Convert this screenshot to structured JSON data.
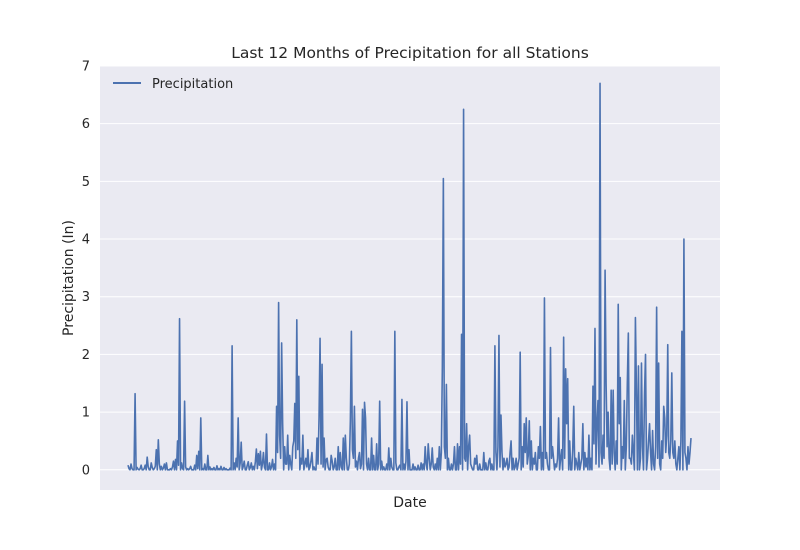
{
  "chart_data": {
    "type": "line",
    "title": "Last 12 Months of Precipitation for all Stations",
    "xlabel": "Date",
    "ylabel": "Precipitation (In)",
    "ylim": [
      -0.35,
      7.0
    ],
    "yticks": [
      0,
      1,
      2,
      3,
      4,
      5,
      6,
      7
    ],
    "ytick_labels": [
      "0",
      "1",
      "2",
      "3",
      "4",
      "5",
      "6",
      "7"
    ],
    "grid": true,
    "legend_position": "top-left",
    "colors": {
      "background": "#eaeaf2",
      "grid": "#ffffff",
      "line": "#4c72b0"
    },
    "series": [
      {
        "name": "Precipitation",
        "values": [
          0.08,
          0.02,
          0.0,
          0.1,
          0.02,
          0.0,
          0.0,
          1.32,
          0.0,
          0.04,
          0.01,
          0.0,
          0.02,
          0.08,
          0.0,
          0.0,
          0.02,
          0.08,
          0.0,
          0.22,
          0.05,
          0.0,
          0.0,
          0.12,
          0.04,
          0.0,
          0.02,
          0.06,
          0.35,
          0.0,
          0.52,
          0.1,
          0.0,
          0.06,
          0.0,
          0.03,
          0.1,
          0.0,
          0.12,
          0.0,
          0.0,
          0.0,
          0.02,
          0.0,
          0.05,
          0.15,
          0.0,
          0.18,
          0.0,
          0.5,
          0.08,
          2.62,
          0.0,
          0.12,
          0.02,
          0.0,
          1.19,
          0.05,
          0.0,
          0.02,
          0.0,
          0.02,
          0.06,
          0.0,
          0.0,
          0.0,
          0.08,
          0.0,
          0.25,
          0.02,
          0.32,
          0.0,
          0.9,
          0.0,
          0.02,
          0.0,
          0.1,
          0.0,
          0.0,
          0.25,
          0.0,
          0.05,
          0.0,
          0.02,
          0.0,
          0.04,
          0.0,
          0.0,
          0.07,
          0.0,
          0.02,
          0.0,
          0.06,
          0.0,
          0.0,
          0.04,
          0.0,
          0.02,
          0.0,
          0.0,
          0.0,
          0.03,
          0.0,
          2.15,
          0.0,
          0.12,
          0.0,
          0.2,
          0.05,
          0.9,
          0.0,
          0.12,
          0.48,
          0.0,
          0.06,
          0.15,
          0.0,
          0.0,
          0.08,
          0.14,
          0.0,
          0.04,
          0.12,
          0.0,
          0.06,
          0.0,
          0.14,
          0.36,
          0.02,
          0.28,
          0.08,
          0.32,
          0.0,
          0.1,
          0.3,
          0.05,
          0.0,
          0.62,
          0.0,
          0.0,
          0.12,
          0.0,
          0.05,
          0.18,
          0.0,
          0.1,
          0.0,
          1.1,
          0.3,
          2.9,
          0.6,
          0.2,
          2.2,
          0.8,
          0.0,
          0.4,
          0.1,
          0.1,
          0.6,
          0.0,
          0.25,
          0.1,
          0.0,
          0.4,
          0.5,
          1.15,
          0.2,
          2.6,
          0.35,
          1.62,
          0.0,
          0.2,
          0.1,
          0.6,
          0.0,
          0.1,
          0.2,
          0.05,
          0.35,
          0.0,
          0.05,
          0.15,
          0.3,
          0.0,
          0.05,
          0.0,
          0.0,
          0.55,
          0.1,
          0.9,
          2.28,
          0.1,
          1.83,
          0.05,
          0.55,
          0.0,
          0.18,
          0.2,
          0.05,
          0.0,
          0.0,
          0.25,
          0.15,
          0.0,
          0.05,
          0.2,
          0.0,
          0.0,
          0.4,
          0.0,
          0.3,
          0.05,
          0.0,
          0.55,
          0.0,
          0.6,
          0.2,
          0.0,
          0.0,
          0.1,
          0.85,
          2.4,
          0.35,
          0.2,
          1.1,
          0.05,
          0.15,
          0.0,
          0.2,
          0.3,
          0.02,
          0.1,
          1.05,
          0.0,
          1.17,
          0.9,
          0.1,
          0.0,
          0.2,
          0.0,
          0.0,
          0.55,
          0.0,
          0.25,
          0.0,
          0.0,
          0.45,
          0.0,
          0.1,
          1.19,
          0.0,
          0.15,
          0.0,
          0.05,
          0.0,
          0.0,
          0.1,
          0.0,
          0.38,
          0.0,
          0.2,
          0.05,
          0.0,
          0.0,
          2.4,
          0.12,
          0.0,
          0.0,
          0.05,
          0.08,
          0.0,
          1.22,
          0.0,
          0.1,
          0.0,
          0.15,
          1.18,
          0.0,
          0.35,
          0.0,
          0.0,
          0.0,
          0.1,
          0.0,
          0.05,
          0.0,
          0.0,
          0.08,
          0.0,
          0.0,
          0.12,
          0.0,
          0.1,
          0.0,
          0.4,
          0.1,
          0.0,
          0.45,
          0.2,
          0.0,
          0.1,
          0.38,
          0.05,
          0.0,
          0.1,
          0.0,
          0.2,
          0.0,
          0.4,
          0.0,
          0.3,
          1.78,
          5.05,
          0.4,
          0.2,
          1.48,
          0.0,
          0.2,
          0.0,
          0.0,
          0.1,
          0.0,
          0.1,
          0.4,
          0.0,
          0.0,
          0.45,
          0.0,
          0.4,
          0.1,
          2.35,
          0.0,
          6.25,
          0.2,
          0.15,
          0.8,
          0.0,
          0.4,
          0.6,
          0.1,
          0.05,
          0.0,
          0.0,
          0.2,
          0.1,
          0.25,
          0.0,
          0.0,
          0.1,
          0.0,
          0.0,
          0.0,
          0.3,
          0.0,
          0.12,
          0.0,
          0.0,
          0.15,
          0.2,
          0.0,
          0.1,
          0.0,
          0.0,
          2.15,
          0.3,
          0.0,
          0.4,
          2.33,
          0.05,
          0.95,
          0.3,
          0.0,
          0.2,
          0.05,
          0.1,
          0.2,
          0.0,
          0.05,
          0.3,
          0.5,
          0.0,
          0.2,
          0.0,
          0.05,
          0.2,
          0.0,
          0.1,
          0.2,
          2.04,
          0.0,
          0.4,
          0.05,
          0.8,
          0.3,
          0.9,
          0.1,
          0.25,
          0.85,
          0.0,
          0.5,
          0.0,
          0.2,
          0.1,
          0.3,
          0.0,
          0.0,
          0.4,
          0.2,
          0.75,
          0.0,
          0.3,
          0.0,
          2.98,
          0.2,
          0.3,
          0.1,
          0.0,
          0.0,
          2.12,
          0.2,
          0.4,
          0.2,
          0.0,
          0.1,
          0.05,
          0.2,
          0.9,
          0.0,
          0.2,
          0.35,
          0.0,
          2.3,
          0.2,
          1.75,
          0.8,
          1.58,
          0.0,
          0.5,
          0.0,
          0.0,
          0.35,
          1.1,
          0.0,
          0.2,
          0.1,
          0.0,
          0.3,
          0.0,
          0.1,
          0.2,
          0.8,
          0.0,
          0.3,
          0.05,
          0.2,
          0.0,
          0.6,
          0.0,
          0.2,
          0.0,
          1.45,
          0.45,
          2.45,
          0.1,
          0.8,
          1.2,
          0.05,
          6.7,
          0.3,
          0.1,
          0.6,
          0.2,
          3.46,
          1.5,
          0.4,
          1.0,
          0.2,
          0.0,
          1.38,
          0.1,
          1.38,
          0.3,
          0.0,
          0.5,
          0.1,
          2.87,
          0.8,
          1.6,
          0.0,
          0.4,
          0.2,
          1.2,
          0.0,
          0.4,
          1.5,
          2.37,
          0.2,
          0.2,
          0.1,
          0.6,
          0.3,
          0.0,
          2.64,
          1.4,
          0.0,
          1.8,
          0.0,
          0.2,
          1.85,
          0.4,
          0.0,
          1.3,
          2.0,
          0.0,
          0.2,
          0.5,
          0.8,
          0.3,
          0.0,
          0.68,
          0.1,
          0.0,
          0.4,
          2.82,
          0.2,
          1.85,
          0.1,
          0.0,
          0.5,
          0.2,
          1.1,
          0.9,
          0.3,
          0.6,
          2.17,
          0.3,
          0.2,
          0.5,
          1.68,
          0.3,
          0.2,
          0.5,
          0.1,
          0.0,
          0.2,
          0.4,
          0.0,
          0.5,
          2.4,
          0.0,
          4.0,
          0.3,
          0.2,
          0.0,
          0.4,
          0.1,
          0.3,
          0.55
        ]
      }
    ]
  }
}
